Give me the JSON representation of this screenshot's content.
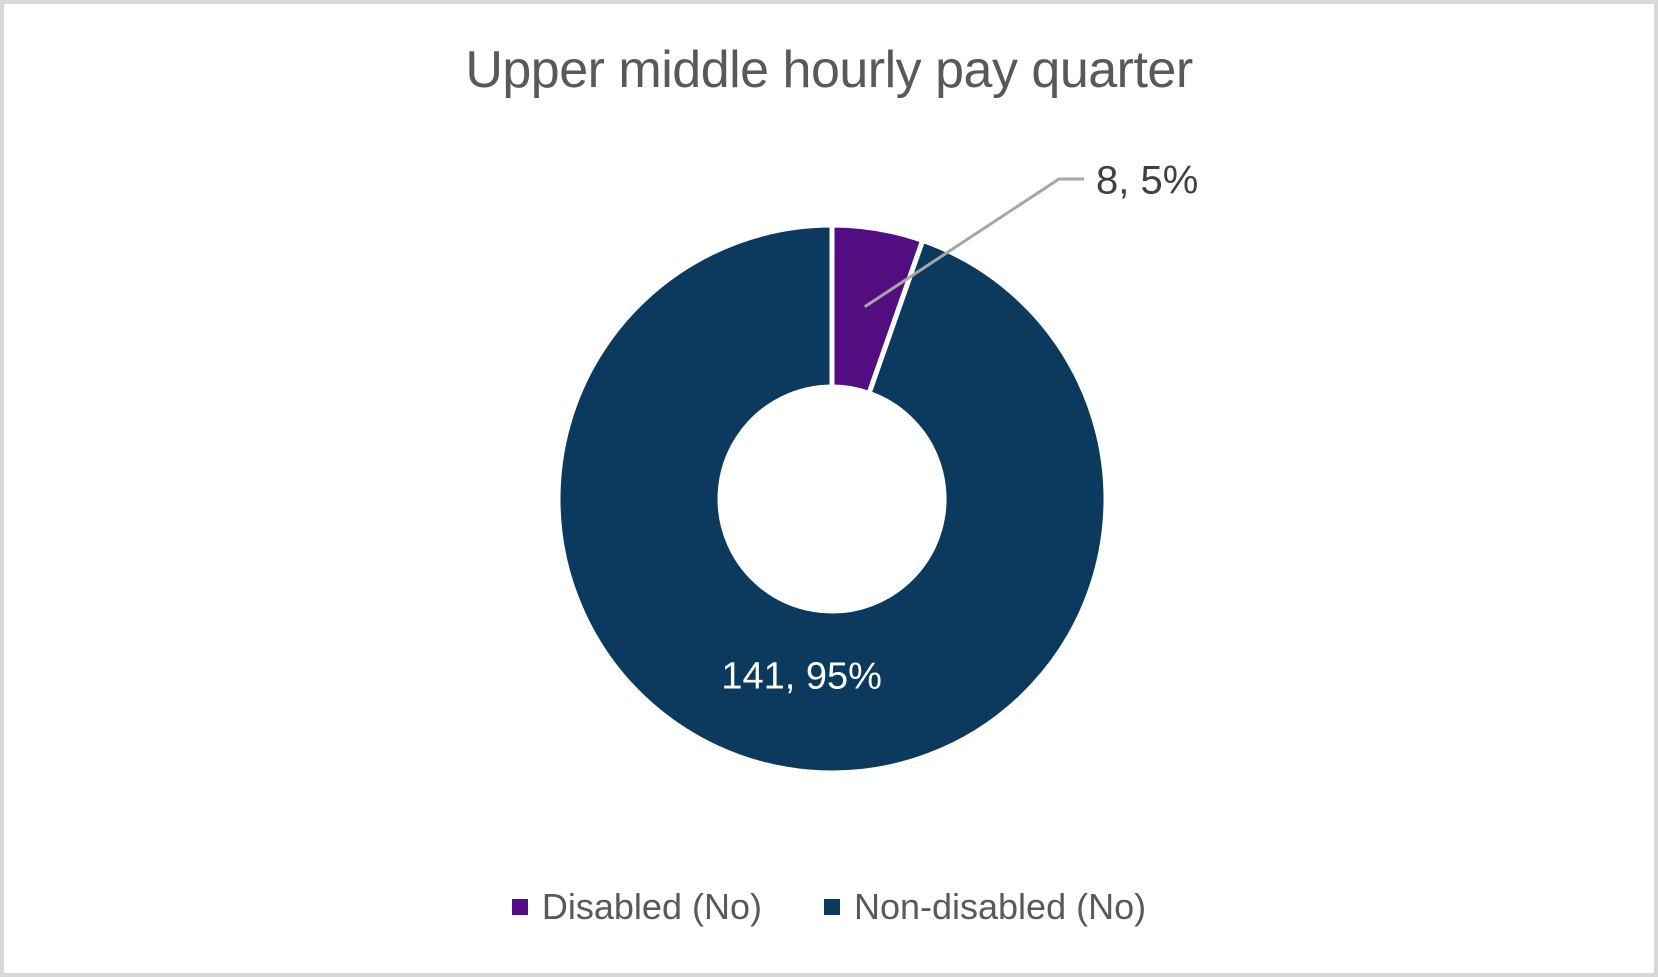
{
  "window": {
    "background": "#ffffff",
    "border_color": "#d8d8d8"
  },
  "chart_data": {
    "type": "pie",
    "subtype": "doughnut",
    "title": "Upper middle hourly pay quarter",
    "categories": [
      "Disabled (No)",
      "Non-disabled (No)"
    ],
    "values": [
      8,
      141
    ],
    "data_labels": [
      "8, 5%",
      "141, 95%"
    ],
    "colors": [
      "#520d80",
      "#0b3a5e"
    ],
    "label_colors": [
      "#404040",
      "#ffffff"
    ],
    "title_color": "#595959",
    "legend_text_color": "#595959",
    "leader_line_color": "#a6a6a6",
    "slice_border_color": "#ffffff",
    "legend_position": "bottom",
    "start_angle_deg": 0,
    "direction": "clockwise",
    "hole_ratio": 0.41,
    "grid": false
  }
}
